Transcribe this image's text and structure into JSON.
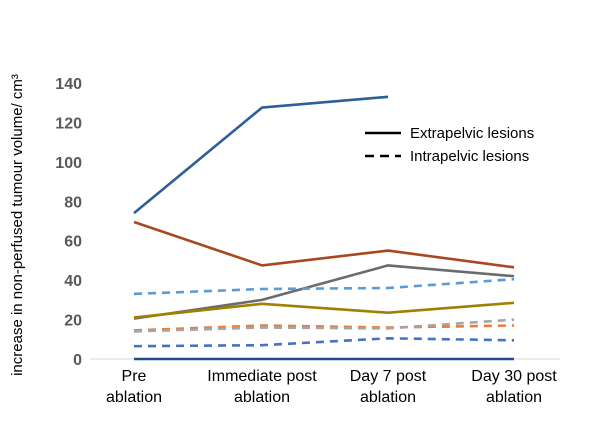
{
  "chart_data": {
    "type": "line",
    "title": "",
    "xlabel": "",
    "ylabel": "increase in non-perfused tumour volume/ cm³",
    "ylim": [
      0,
      140
    ],
    "yticks": [
      "0",
      "20",
      "40",
      "60",
      "80",
      "100",
      "120",
      "140"
    ],
    "categories": [
      [
        "Pre",
        "ablation"
      ],
      [
        "Immediate post",
        "ablation"
      ],
      [
        "Day 7 post",
        "ablation"
      ],
      [
        "Day 30 post",
        "ablation"
      ]
    ],
    "legend": {
      "placement": "top-right",
      "entries": [
        {
          "label": "Extrapelvic lesions",
          "dash": "solid"
        },
        {
          "label": "Intrapelvic lesions",
          "dash": "dashed"
        }
      ]
    },
    "grid": false,
    "series": [
      {
        "color": "#2E5F97",
        "dash": "solid",
        "values": [
          74,
          127.5,
          133,
          null
        ]
      },
      {
        "color": "#A8481E",
        "dash": "solid",
        "values": [
          69.5,
          47.5,
          55,
          46.5
        ]
      },
      {
        "color": "#6B6B6B",
        "dash": "solid",
        "values": [
          20.5,
          30,
          47.5,
          42
        ]
      },
      {
        "color": "#A08000",
        "dash": "solid",
        "values": [
          21,
          28,
          23.5,
          28.5
        ]
      },
      {
        "color": "#1F4E8C",
        "dash": "solid",
        "values": [
          0,
          0,
          0,
          0
        ]
      },
      {
        "color": "#5B9BD5",
        "dash": "dashed",
        "values": [
          33,
          35.5,
          36,
          40.5
        ]
      },
      {
        "color": "#ED7D31",
        "dash": "dashed",
        "values": [
          14.5,
          17,
          16,
          17
        ]
      },
      {
        "color": "#A5A5A5",
        "dash": "dashed",
        "values": [
          14,
          16,
          15.5,
          20
        ]
      },
      {
        "color": "#4472C4",
        "dash": "dashed",
        "values": [
          6.5,
          7,
          10.5,
          9.5
        ]
      }
    ]
  }
}
